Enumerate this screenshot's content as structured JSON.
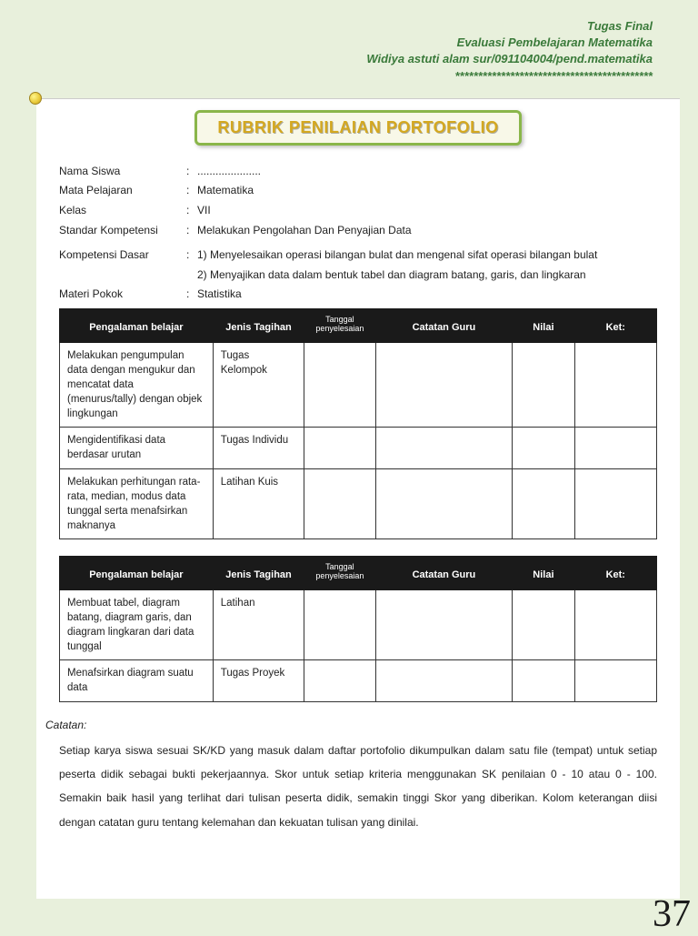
{
  "header": {
    "line1": "Tugas Final",
    "line2": "Evaluasi Pembelajaran Matematika",
    "line3": "Widiya astuti alam sur/091104004/pend.matematika",
    "line4": "*******************************************"
  },
  "title": "RUBRIK PENILAIAN PORTOFOLIO",
  "fields": {
    "nama_label": "Nama Siswa",
    "nama_value": ".....................",
    "mapel_label": "Mata Pelajaran",
    "mapel_value": "Matematika",
    "kelas_label": "Kelas",
    "kelas_value": "VII",
    "sk_label": "Standar Kompetensi",
    "sk_value": "Melakukan Pengolahan Dan Penyajian Data",
    "kd_label": "Kompetensi Dasar",
    "kd1": "1) Menyelesaikan operasi bilangan bulat dan mengenal sifat operasi bilangan bulat",
    "kd2": "2) Menyajikan data dalam bentuk tabel dan diagram batang, garis, dan lingkaran",
    "materi_label": "Materi Pokok",
    "materi_value": "Statistika"
  },
  "table_headers": {
    "col1": "Pengalaman belajar",
    "col2": "Jenis Tagihan",
    "col3": "Tanggal penyelesaian",
    "col4": "Catatan Guru",
    "col5": "Nilai",
    "col6": "Ket:"
  },
  "table1": [
    {
      "exp": "Melakukan pengumpulan data dengan mengukur dan mencatat data (menurus/tally) dengan objek lingkungan",
      "jenis": "Tugas Kelompok"
    },
    {
      "exp": "Mengidentifikasi data berdasar urutan",
      "jenis": "Tugas Individu"
    },
    {
      "exp": "Melakukan perhitungan rata-rata, median, modus data tunggal serta menafsirkan maknanya",
      "jenis": "Latihan Kuis"
    }
  ],
  "table2": [
    {
      "exp": "Membuat tabel, diagram batang, diagram garis, dan diagram lingkaran dari data tunggal",
      "jenis": "Latihan"
    },
    {
      "exp": "Menafsirkan diagram suatu data",
      "jenis": "Tugas Proyek"
    }
  ],
  "notes": {
    "title": "Catatan:",
    "body": "Setiap karya siswa sesuai SK/KD yang masuk dalam daftar portofolio dikumpulkan dalam satu file (tempat) untuk setiap peserta didik sebagai bukti pekerjaannya. Skor untuk setiap kriteria menggunakan SK penilaian 0 - 10 atau 0 - 100. Semakin baik hasil yang terlihat dari tulisan peserta didik, semakin tinggi Skor yang diberikan. Kolom keterangan diisi dengan catatan guru tentang kelemahan dan kekuatan tulisan yang dinilai."
  },
  "page_number": "37"
}
